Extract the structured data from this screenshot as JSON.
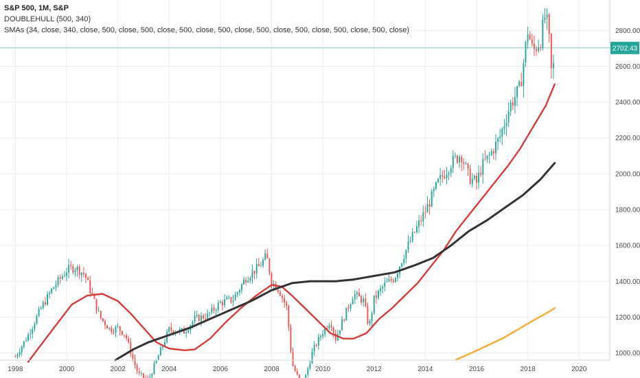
{
  "header": {
    "title": "S&P 500, 1M, S&P",
    "indicator_1": "DOUBLEHULL (500, 340)",
    "indicator_2": "SMAs (34, close, 340, close, 500, close, 500, close, 500, close, 500, close, 500, close, 500, close, 500, close, 500, close)"
  },
  "last_price": {
    "value": 2702.43,
    "label": "2702.43",
    "color": "#26a69a"
  },
  "colors": {
    "up": "#26a69a",
    "down": "#ef5350",
    "sma_fast": "#d63b3b",
    "sma_mid": "#333333",
    "sma_slow": "#f5b041",
    "grid": "#eeeeee"
  },
  "chart_data": {
    "type": "line",
    "x_axis": {
      "range": [
        1997.4,
        2021.2
      ],
      "ticks": [
        1998,
        2000,
        2002,
        2004,
        2006,
        2008,
        2010,
        2012,
        2014,
        2016,
        2018,
        2020
      ],
      "tick_labels": [
        "1998",
        "2000",
        "2002",
        "2004",
        "2006",
        "2008",
        "2010",
        "2012",
        "2014",
        "2016",
        "2018",
        "2020"
      ]
    },
    "y_axis": {
      "range": [
        960,
        2970
      ],
      "ticks": [
        1000,
        1200,
        1400,
        1600,
        1800,
        2000,
        2200,
        2400,
        2600,
        2800
      ],
      "tick_labels": [
        "1000.00",
        "1200.00",
        "1400.00",
        "1600.00",
        "1800.00",
        "2000.00",
        "2200.00",
        "2400.00",
        "2600.00",
        "2800.00"
      ]
    },
    "price_series": {
      "name": "S&P 500",
      "x": [
        1998.0,
        1998.5,
        1999.0,
        1999.5,
        2000.0,
        2000.3,
        2000.7,
        2001.0,
        2001.3,
        2001.7,
        2002.0,
        2002.3,
        2002.6,
        2002.8,
        2003.2,
        2003.6,
        2004.0,
        2004.6,
        2005.0,
        2005.5,
        2006.0,
        2006.5,
        2007.0,
        2007.5,
        2007.8,
        2008.0,
        2008.3,
        2008.6,
        2008.8,
        2009.2,
        2009.6,
        2010.0,
        2010.3,
        2010.5,
        2010.8,
        2011.2,
        2011.6,
        2011.8,
        2012.0,
        2012.4,
        2012.8,
        2013.2,
        2013.6,
        2014.0,
        2014.5,
        2015.0,
        2015.4,
        2015.7,
        2016.0,
        2016.2,
        2016.5,
        2016.9,
        2017.3,
        2017.7,
        2018.0,
        2018.2,
        2018.5,
        2018.7,
        2018.85,
        2018.95,
        2019.05
      ],
      "y": [
        980,
        1100,
        1250,
        1370,
        1460,
        1480,
        1440,
        1320,
        1200,
        1130,
        1140,
        1100,
        960,
        880,
        850,
        990,
        1130,
        1120,
        1190,
        1210,
        1280,
        1300,
        1420,
        1480,
        1540,
        1400,
        1350,
        1250,
        940,
        800,
        1010,
        1120,
        1180,
        1080,
        1190,
        1330,
        1290,
        1140,
        1300,
        1380,
        1420,
        1560,
        1680,
        1790,
        1950,
        2060,
        2110,
        1980,
        1950,
        2040,
        2100,
        2200,
        2380,
        2480,
        2800,
        2680,
        2750,
        2900,
        2720,
        2500,
        2702.43
      ]
    },
    "series": [
      {
        "x": [
          1998.5,
          1999.5,
          2000.2,
          2000.8,
          2001.4,
          2002.0,
          2002.5,
          2003.0,
          2003.5,
          2004.0,
          2004.6,
          2005.0,
          2005.6,
          2006.2,
          2006.8,
          2007.4,
          2008.0,
          2008.4,
          2008.8,
          2009.3,
          2009.8,
          2010.3,
          2010.8,
          2011.2,
          2011.7,
          2012.2,
          2012.7,
          2013.2,
          2013.7,
          2014.2,
          2014.7,
          2015.2,
          2015.7,
          2016.2,
          2016.7,
          2017.2,
          2017.7,
          2018.2,
          2018.7,
          2019.05
        ],
        "y": [
          950,
          1140,
          1270,
          1320,
          1330,
          1290,
          1220,
          1140,
          1060,
          1025,
          1015,
          1020,
          1080,
          1170,
          1250,
          1320,
          1380,
          1370,
          1320,
          1250,
          1180,
          1110,
          1080,
          1080,
          1110,
          1190,
          1250,
          1320,
          1390,
          1480,
          1570,
          1680,
          1770,
          1860,
          1950,
          2040,
          2140,
          2260,
          2380,
          2500
        ]
      },
      {
        "x": [
          2001.9,
          2002.6,
          2003.2,
          2004.0,
          2004.8,
          2005.6,
          2006.4,
          2007.2,
          2008.0,
          2008.8,
          2009.5,
          2010.5,
          2011.2,
          2012.0,
          2012.8,
          2013.6,
          2014.3,
          2015.0,
          2015.7,
          2016.4,
          2017.1,
          2017.8,
          2018.5,
          2019.05
        ],
        "y": [
          960,
          1020,
          1060,
          1100,
          1140,
          1190,
          1240,
          1290,
          1350,
          1390,
          1400,
          1400,
          1410,
          1430,
          1450,
          1490,
          1530,
          1600,
          1680,
          1740,
          1810,
          1880,
          1970,
          2060
        ]
      },
      {
        "x": [
          2015.2,
          2015.8,
          2016.4,
          2017.0,
          2017.6,
          2018.2,
          2018.7,
          2019.05
        ],
        "y": [
          962,
          1000,
          1040,
          1080,
          1130,
          1180,
          1220,
          1250
        ]
      }
    ]
  }
}
